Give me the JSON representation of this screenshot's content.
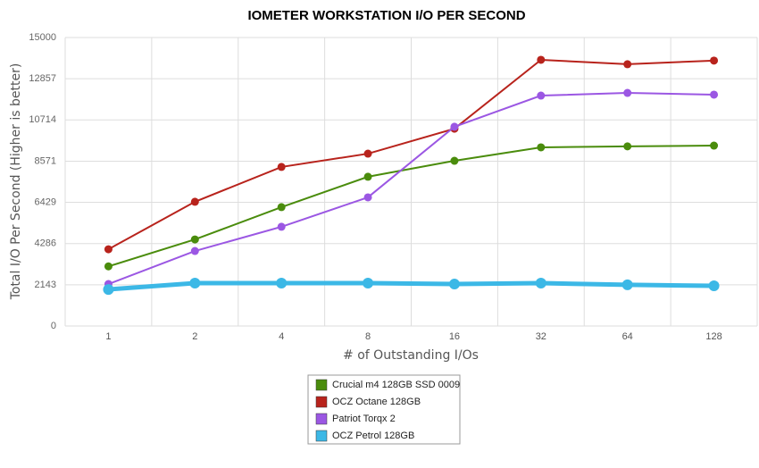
{
  "chart_data": {
    "type": "line",
    "title": "IOMETER WORKSTATION I/O PER SECOND",
    "x_label": "# of Outstanding I/Os",
    "y_label": "Total I/O Per Second (Higher is better)",
    "categories": [
      "1",
      "2",
      "4",
      "8",
      "16",
      "32",
      "64",
      "128"
    ],
    "series": [
      {
        "name": "Crucial m4 128GB SSD 0009",
        "color": "#4a8c0c",
        "values": [
          3100,
          4500,
          6180,
          7760,
          8590,
          9290,
          9340,
          9380
        ]
      },
      {
        "name": "OCZ Octane 128GB",
        "color": "#b8231c",
        "values": [
          3990,
          6460,
          8270,
          8960,
          10260,
          13840,
          13610,
          13800
        ]
      },
      {
        "name": "Patriot Torqx 2",
        "color": "#9b57e3",
        "values": [
          2180,
          3900,
          5160,
          6690,
          10360,
          11980,
          12120,
          12030
        ]
      },
      {
        "name": "OCZ Petrol 128GB",
        "color": "#3cb8e6",
        "values": [
          1900,
          2230,
          2230,
          2230,
          2180,
          2230,
          2140,
          2090
        ]
      }
    ],
    "ylim": [
      0,
      15000
    ],
    "yticks": [
      0,
      2143,
      4286,
      6429,
      8571,
      10714,
      12857,
      15000
    ],
    "grid": true
  }
}
